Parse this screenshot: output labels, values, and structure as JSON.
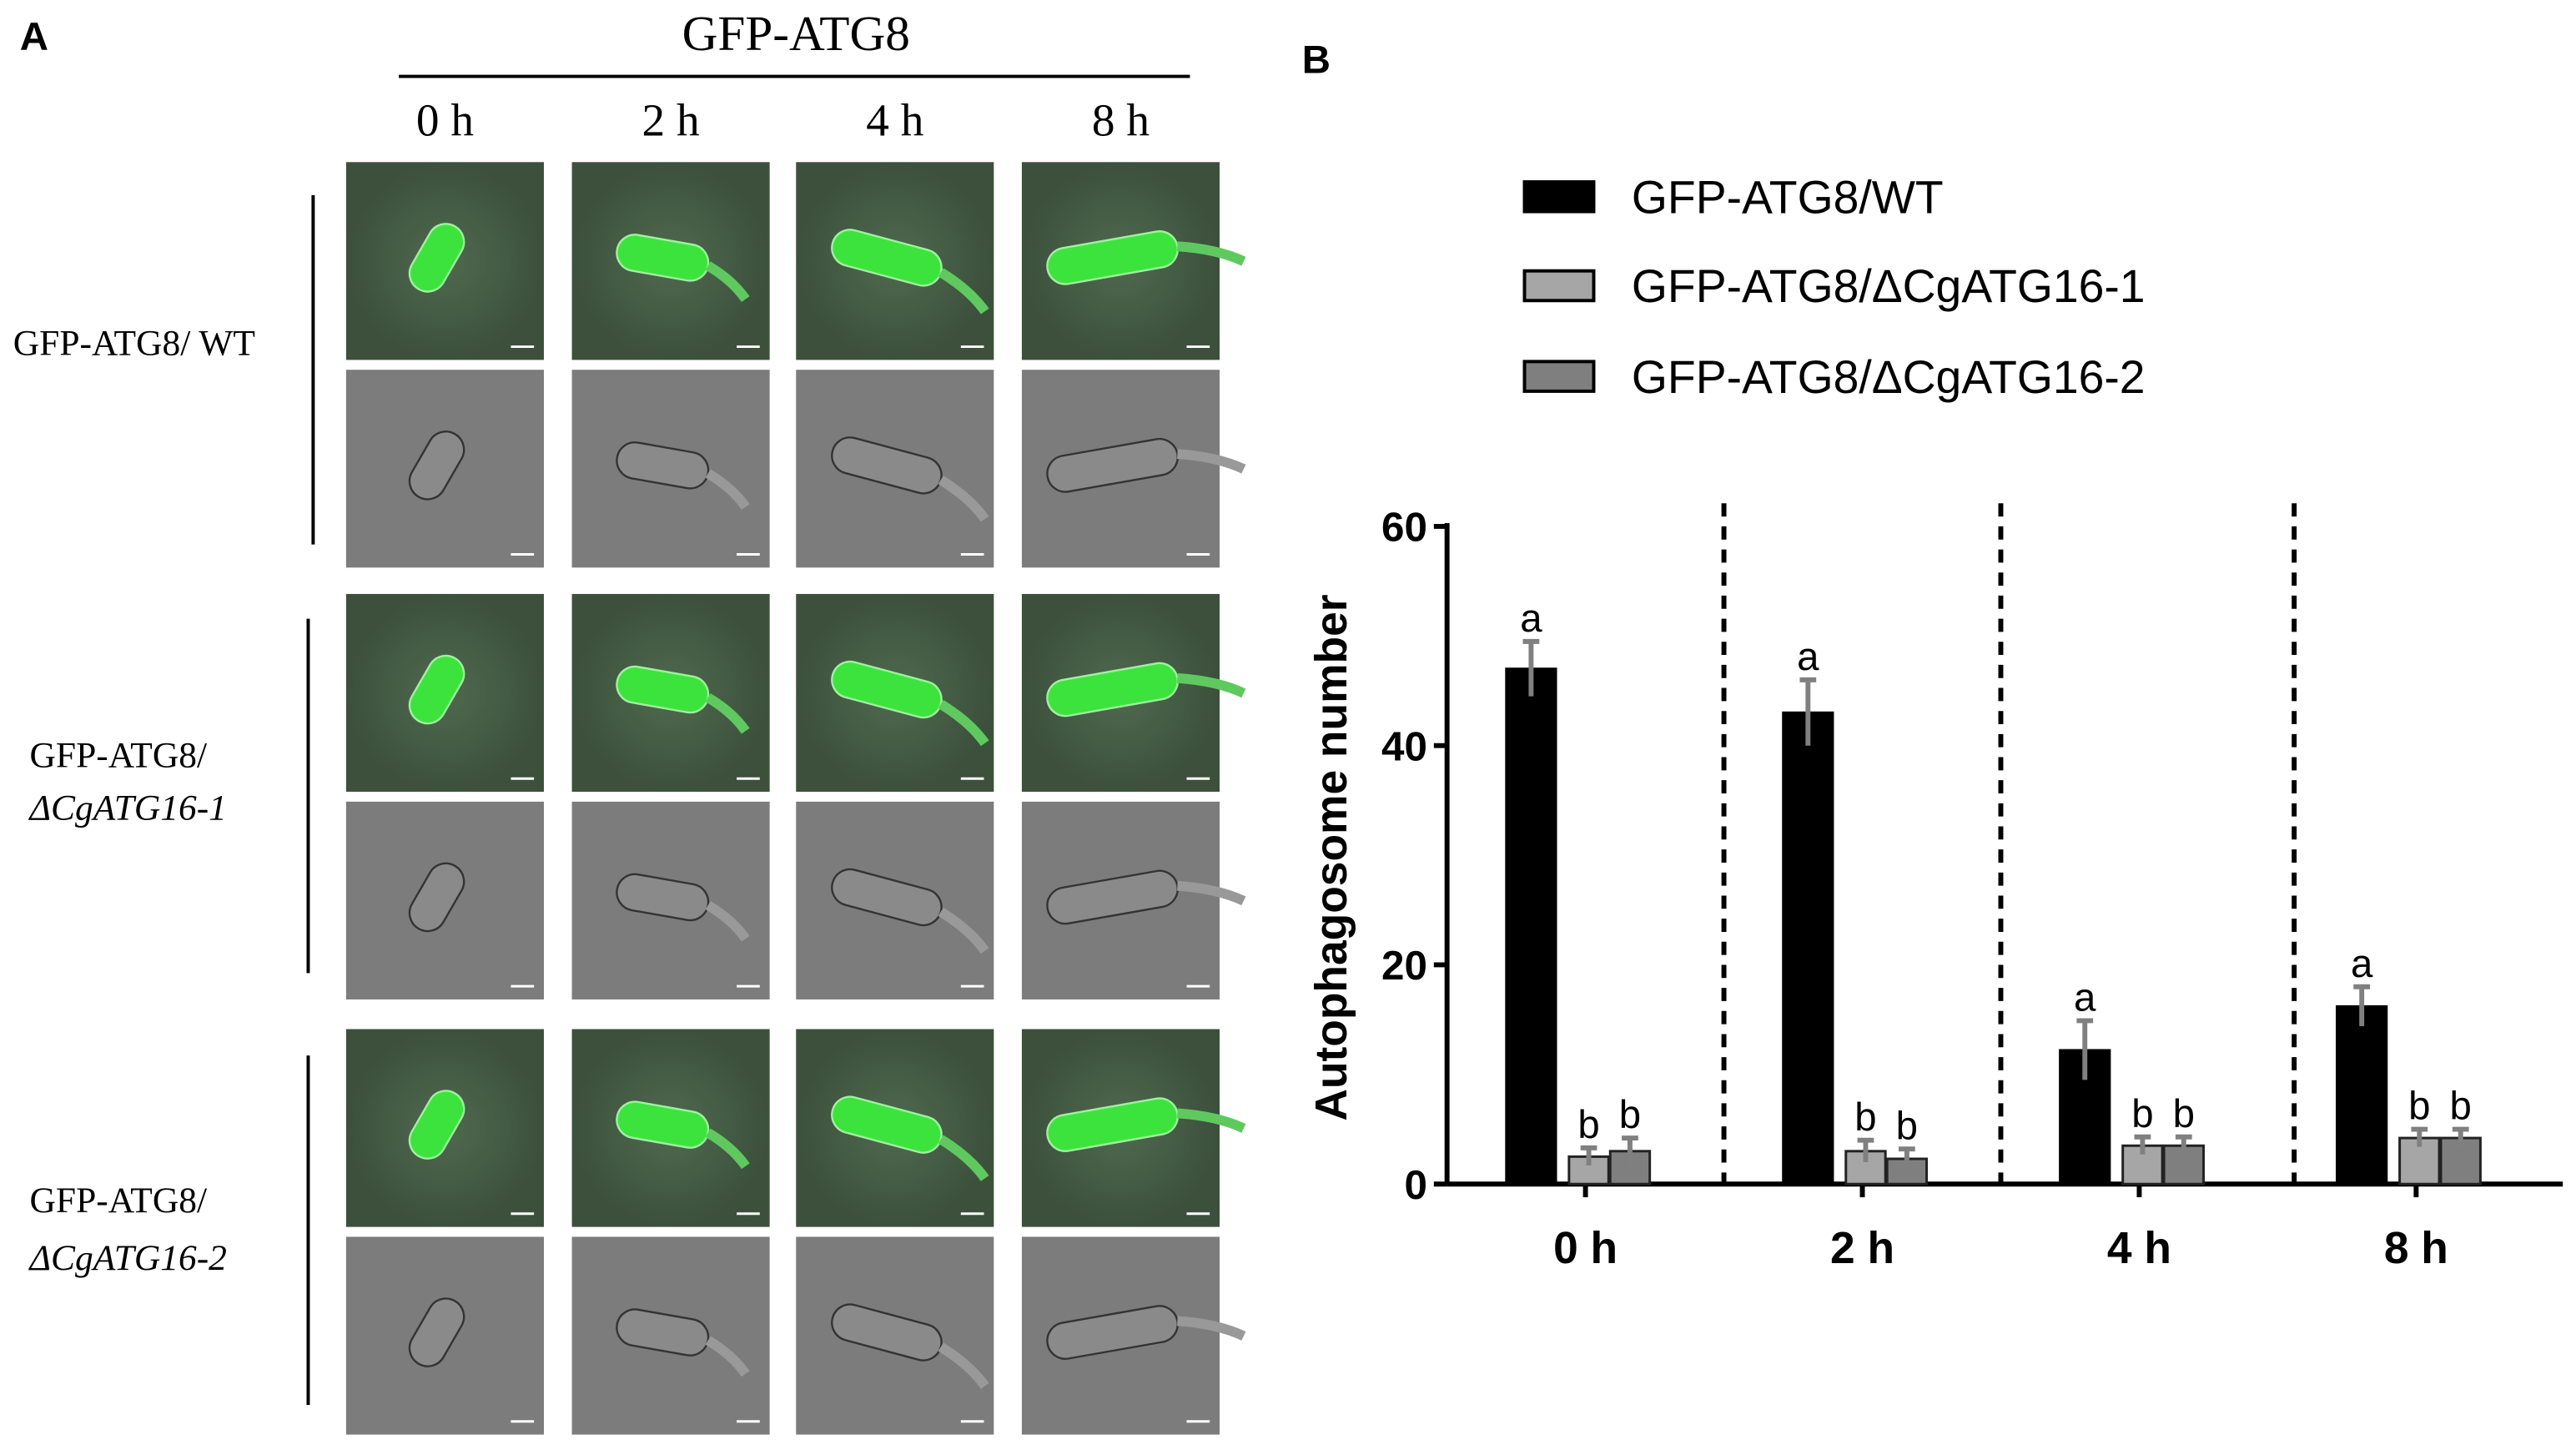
{
  "panel_a": {
    "label": "A",
    "header": "GFP-ATG8",
    "times": [
      "0 h",
      "2 h",
      "4 h",
      "8 h"
    ],
    "rows": [
      [
        "GFP-ATG8/ WT"
      ],
      [
        "GFP-ATG8/",
        "ΔCgATG16-1"
      ],
      [
        "GFP-ATG8/",
        "ΔCgATG16-2"
      ]
    ]
  },
  "chart_data": {
    "type": "bar",
    "panel_label": "B",
    "y_label": "Autophagosome number",
    "categories": [
      "0 h",
      "2 h",
      "4 h",
      "8 h"
    ],
    "ylim": [
      0,
      60
    ],
    "yticks": [
      0,
      20,
      40,
      60
    ],
    "series": [
      {
        "name": "GFP-ATG8/WT",
        "color": "#000000",
        "values": [
          47,
          43,
          12.2,
          16.2
        ],
        "errors": [
          2.5,
          3,
          2.7,
          1.8
        ],
        "labels": [
          "a",
          "a",
          "a",
          "a"
        ]
      },
      {
        "name": "GFP-ATG8/ΔCgATG16-1",
        "color": "#a6a6a6",
        "values": [
          2.5,
          3,
          3.5,
          4.2
        ],
        "errors": [
          0.8,
          1,
          0.8,
          0.8
        ],
        "labels": [
          "b",
          "b",
          "b",
          "b"
        ]
      },
      {
        "name": "GFP-ATG8/ΔCgATG16-2",
        "color": "#7f7f7f",
        "values": [
          3,
          2.3,
          3.5,
          4.2
        ],
        "errors": [
          1.2,
          0.9,
          0.8,
          0.8
        ],
        "labels": [
          "b",
          "b",
          "b",
          "b"
        ]
      }
    ]
  }
}
